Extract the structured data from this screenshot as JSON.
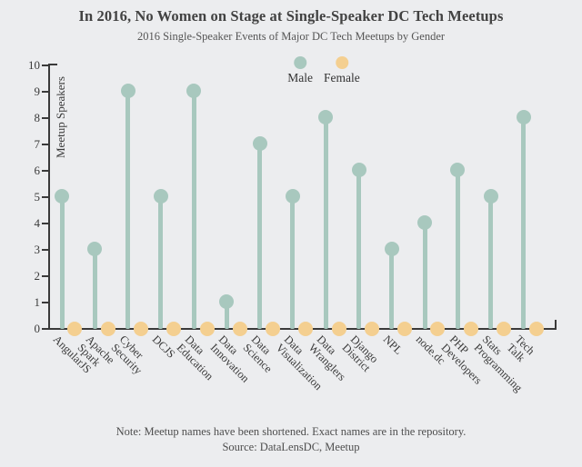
{
  "header": {
    "title": "In 2016, No Women on Stage at Single-Speaker DC Tech Meetups",
    "subtitle": "2016 Single-Speaker Events of Major DC Tech Meetups by Gender"
  },
  "legend": {
    "items": [
      {
        "label": "Male",
        "color": "#a8c8be"
      },
      {
        "label": "Female",
        "color": "#f4cf90"
      }
    ],
    "position": "top-center-inside"
  },
  "colors": {
    "male": "#a8c8be",
    "female": "#f4cf90",
    "background": "#ecedef",
    "axis": "#3a3a3a"
  },
  "chart_data": {
    "type": "scatter",
    "variant": "dodged-lollipop",
    "title": "In 2016, No Women on Stage at Single-Speaker DC Tech Meetups",
    "subtitle": "2016 Single-Speaker Events of Major DC Tech Meetups by Gender",
    "categories": [
      "AngularJS",
      "Apache Spark",
      "Cyber Security",
      "DCJS",
      "Data Education",
      "Data Innovation",
      "Data Science",
      "Data Visualization",
      "Data Wranglers",
      "Django District",
      "NPL",
      "node.dc",
      "PHP Developers",
      "Stats Programming",
      "Tech Talk"
    ],
    "series": [
      {
        "name": "Male",
        "values": [
          5,
          3,
          9,
          5,
          9,
          1,
          7,
          5,
          8,
          6,
          3,
          4,
          6,
          5,
          8
        ]
      },
      {
        "name": "Female",
        "values": [
          0,
          0,
          0,
          0,
          0,
          0,
          0,
          0,
          0,
          0,
          0,
          0,
          0,
          0,
          0
        ]
      }
    ],
    "xlabel": "",
    "ylabel": "Meetup Speakers",
    "ylim": [
      0,
      10
    ],
    "yticks": [
      0,
      1,
      2,
      3,
      4,
      5,
      6,
      7,
      8,
      9,
      10
    ],
    "grid": false,
    "legend_position": "top-center-inside"
  },
  "footer": {
    "note": "Note: Meetup names have been shortened. Exact names are in the repository.",
    "source": "Source: DataLensDC, Meetup"
  }
}
